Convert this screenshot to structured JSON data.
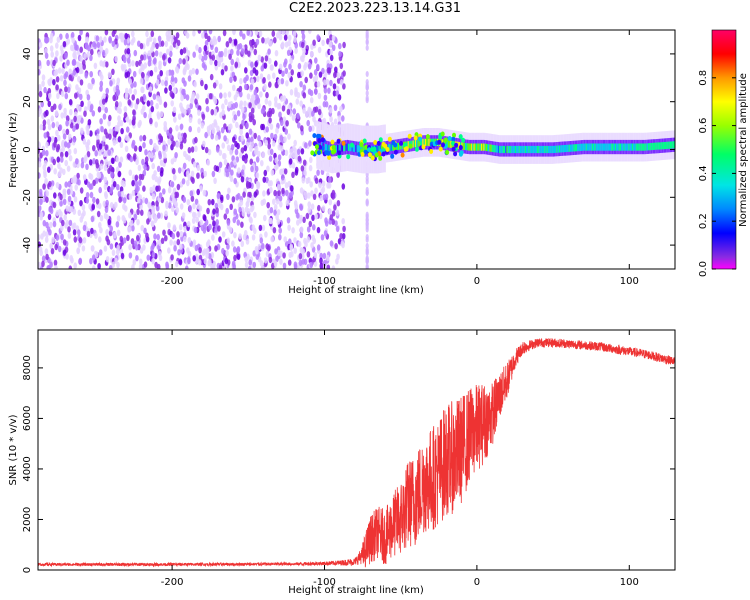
{
  "figure_title": "C2E2.2023.223.13.14.G31",
  "colors": {
    "snr_line": "#ee3333",
    "spectrogram_noise": "#8a2be2",
    "axes": "#000000"
  },
  "colormap": [
    "#ffffff",
    "#e6d5ff",
    "#b873ff",
    "#8a2be2",
    "#3300ff",
    "#0088ff",
    "#00e5e5",
    "#00ff66",
    "#99ff00",
    "#ffff00",
    "#ff9900",
    "#ff0000",
    "#ff0066"
  ],
  "chart_data": [
    {
      "type": "heatmap",
      "title": "",
      "xlabel": "Height of straight line (km)",
      "ylabel": "Frequency (Hz)",
      "xlim": [
        -288,
        130
      ],
      "ylim": [
        -50,
        50
      ],
      "x_ticks": [
        -200,
        -100,
        0,
        100
      ],
      "x_tick_labels": [
        "-200",
        "-100",
        "0",
        "100"
      ],
      "y_ticks": [
        -40,
        -20,
        0,
        20,
        40
      ],
      "y_tick_labels": [
        "-40",
        "-20",
        "0",
        "20",
        "40"
      ],
      "grid": false,
      "colorbar": {
        "label": "Normalized spectral amplitude",
        "range": [
          0,
          1
        ],
        "ticks": [
          0.0,
          0.2,
          0.4,
          0.6,
          0.8
        ],
        "tick_labels": [
          "0.0",
          "0.2",
          "0.4",
          "0.6",
          "0.8"
        ]
      },
      "noise_region": {
        "x_from": -288,
        "x_to": -87,
        "typical_amplitude": 0.15
      },
      "noise_stripe_x": -72,
      "carrier_ridge": [
        {
          "x": -105,
          "freq": 2,
          "amplitude": 0.35
        },
        {
          "x": -95,
          "freq": 0,
          "amplitude": 0.45
        },
        {
          "x": -85,
          "freq": 1,
          "amplitude": 0.45
        },
        {
          "x": -75,
          "freq": 0,
          "amplitude": 0.5
        },
        {
          "x": -65,
          "freq": 0,
          "amplitude": 0.5
        },
        {
          "x": -55,
          "freq": 1,
          "amplitude": 0.55
        },
        {
          "x": -45,
          "freq": 2,
          "amplitude": 0.6
        },
        {
          "x": -35,
          "freq": 3,
          "amplitude": 0.65
        },
        {
          "x": -25,
          "freq": 3,
          "amplitude": 0.65
        },
        {
          "x": -15,
          "freq": 2,
          "amplitude": 0.7
        },
        {
          "x": -5,
          "freq": 1,
          "amplitude": 0.6
        },
        {
          "x": 5,
          "freq": 1,
          "amplitude": 0.6
        },
        {
          "x": 15,
          "freq": 0,
          "amplitude": 0.5
        },
        {
          "x": 30,
          "freq": 0,
          "amplitude": 0.5
        },
        {
          "x": 50,
          "freq": 0,
          "amplitude": 0.5
        },
        {
          "x": 70,
          "freq": 1,
          "amplitude": 0.5
        },
        {
          "x": 90,
          "freq": 1,
          "amplitude": 0.5
        },
        {
          "x": 110,
          "freq": 1,
          "amplitude": 0.55
        },
        {
          "x": 130,
          "freq": 2,
          "amplitude": 0.55
        }
      ]
    },
    {
      "type": "line",
      "title": "",
      "xlabel": "Height of straight line (km)",
      "ylabel": "SNR (10 * v/v)",
      "xlim": [
        -288,
        130
      ],
      "ylim": [
        0,
        9500
      ],
      "x_ticks": [
        -200,
        -100,
        0,
        100
      ],
      "x_tick_labels": [
        "-200",
        "-100",
        "0",
        "100"
      ],
      "y_ticks": [
        0,
        2000,
        4000,
        6000,
        8000
      ],
      "y_tick_labels": [
        "0",
        "2000",
        "4000",
        "6000",
        "8000"
      ],
      "grid": false,
      "series": [
        {
          "x": [
            -288,
            -250,
            -200,
            -150,
            -120,
            -100,
            -90,
            -80,
            -75,
            -70,
            -65,
            -60,
            -55,
            -50,
            -45,
            -40,
            -35,
            -30,
            -25,
            -20,
            -15,
            -10,
            -5,
            0,
            5,
            10,
            15,
            20,
            25,
            30,
            35,
            40,
            50,
            60,
            70,
            80,
            90,
            100,
            110,
            120,
            130
          ],
          "y": [
            220,
            220,
            220,
            230,
            240,
            260,
            280,
            330,
            600,
            1300,
            1600,
            1400,
            1900,
            2200,
            2800,
            3000,
            3600,
            3800,
            4100,
            4600,
            4700,
            5000,
            5500,
            5800,
            6000,
            6300,
            7000,
            7600,
            8400,
            8800,
            8900,
            9000,
            9000,
            8950,
            8900,
            8850,
            8750,
            8650,
            8550,
            8400,
            8250
          ],
          "noise_amplitude": [
            120,
            120,
            120,
            120,
            120,
            150,
            200,
            300,
            700,
            1200,
            1300,
            1400,
            1600,
            1900,
            2200,
            2400,
            2500,
            2600,
            2700,
            2800,
            2800,
            2700,
            2400,
            2200,
            2000,
            1600,
            1200,
            900,
            500,
            300,
            200,
            180,
            180,
            180,
            180,
            180,
            180,
            180,
            180,
            180,
            180
          ]
        }
      ]
    }
  ]
}
